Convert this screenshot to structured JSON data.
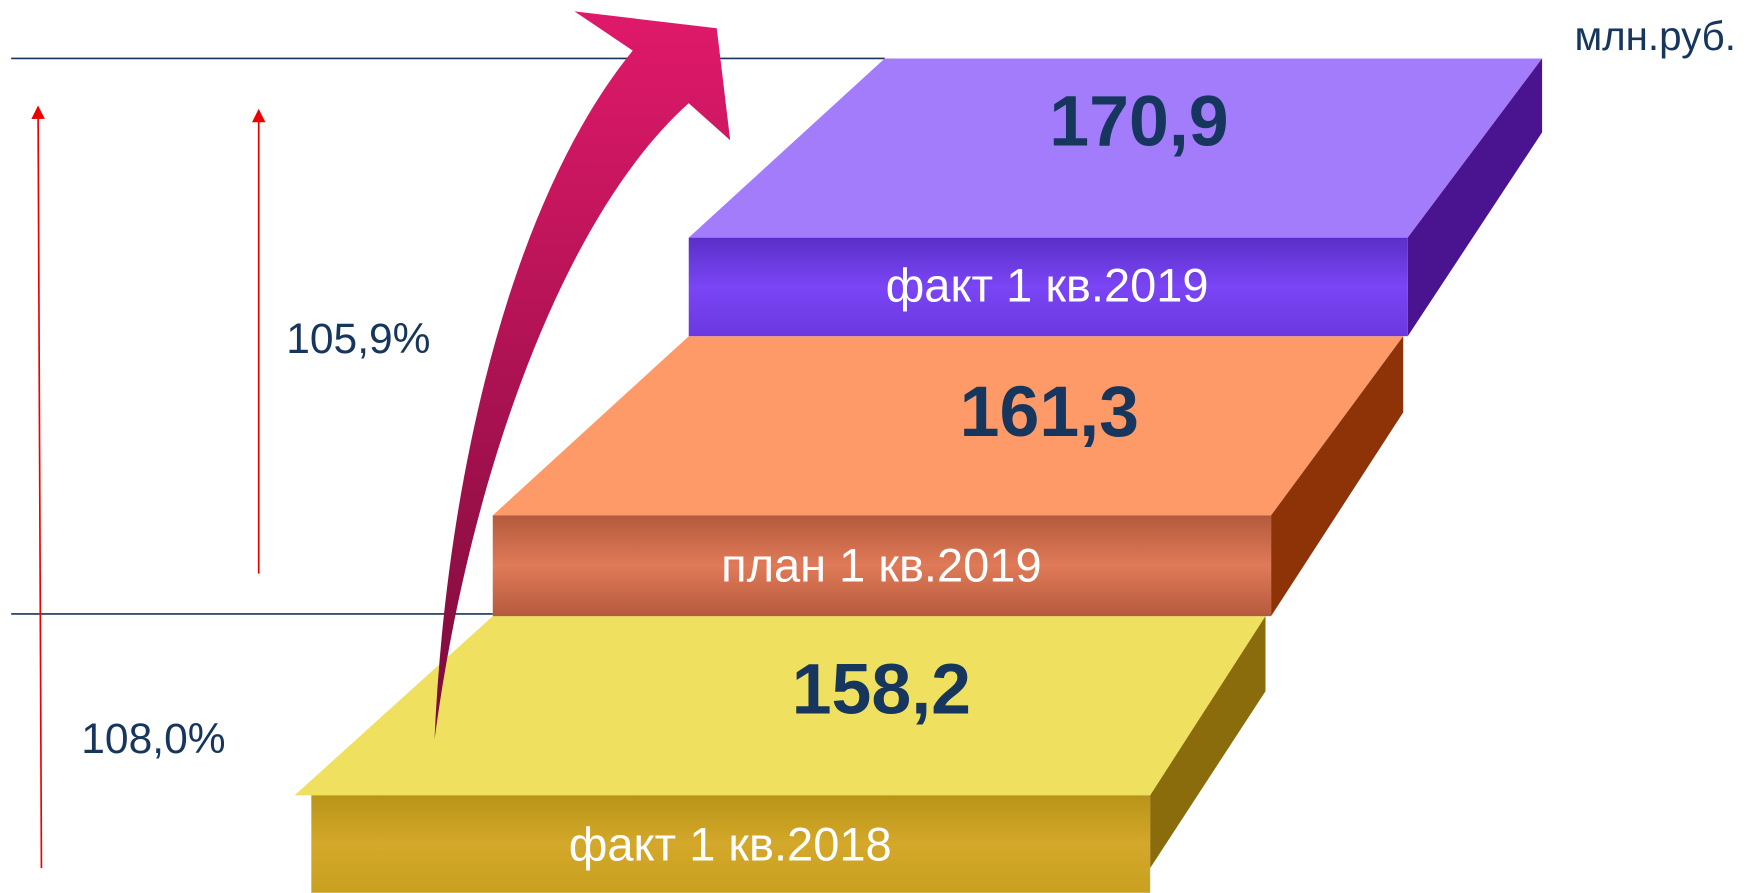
{
  "unit": "млн.руб.",
  "steps": [
    {
      "label": "факт 1 кв.2018",
      "value": "158,2"
    },
    {
      "label": "план 1 кв.2019",
      "value": "161,3"
    },
    {
      "label": "факт 1 кв.2019",
      "value": "170,9"
    }
  ],
  "growth": {
    "vs_plan": "105,9%",
    "vs_last_year": "108,0%"
  }
}
